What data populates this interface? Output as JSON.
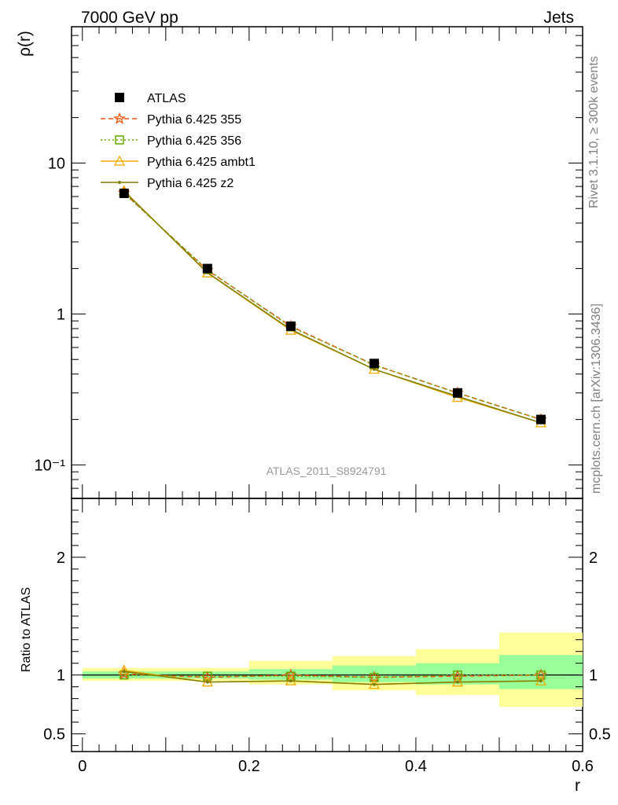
{
  "header": {
    "left": "7000 GeV pp",
    "right": "Jets"
  },
  "side_texts": {
    "rivet": "Rivet 3.1.10, ≥ 300k events",
    "mcplots": "mcplots.cern.ch [arXiv:1306.3436]"
  },
  "watermark": "ATLAS_2011_S8924791",
  "colors": {
    "atlas": "#000000",
    "p355": "#ee5511",
    "p356": "#66aa00",
    "ambt1": "#eeaa00",
    "z2": "#7f7f00",
    "band_inner": "#99ff99",
    "band_outer": "#ffff99"
  },
  "chart_data": [
    {
      "type": "line",
      "ylabel": "ρ(r)",
      "yscale": "log",
      "ylim": [
        0.06,
        80
      ],
      "xlim": [
        -0.013,
        0.6
      ],
      "yticks": [
        {
          "v": 10,
          "label": "10"
        },
        {
          "v": 1,
          "label": "1"
        },
        {
          "v": 0.1,
          "label": "10⁻¹"
        }
      ],
      "legend_position": "top-left",
      "x": [
        0.05,
        0.15,
        0.25,
        0.35,
        0.45,
        0.55
      ],
      "series": [
        {
          "name": "ATLAS",
          "values": [
            6.3,
            2.0,
            0.83,
            0.47,
            0.3,
            0.2
          ],
          "marker": "square",
          "line": "none"
        },
        {
          "name": "Pythia 6.425 355",
          "values": [
            6.35,
            1.95,
            0.83,
            0.46,
            0.3,
            0.2
          ],
          "marker": "star",
          "line": "dashed"
        },
        {
          "name": "Pythia 6.425 356",
          "values": [
            6.3,
            1.97,
            0.82,
            0.46,
            0.3,
            0.2
          ],
          "marker": "open-square",
          "line": "dotted"
        },
        {
          "name": "Pythia 6.425 ambt1",
          "values": [
            6.55,
            1.87,
            0.78,
            0.43,
            0.28,
            0.19
          ],
          "marker": "triangle",
          "line": "solid"
        },
        {
          "name": "Pythia 6.425 z2",
          "values": [
            6.5,
            1.88,
            0.79,
            0.43,
            0.285,
            0.19
          ],
          "marker": "dot",
          "line": "solid"
        }
      ]
    },
    {
      "type": "line",
      "ylabel": "Ratio to ATLAS",
      "xlabel": "r",
      "ylim": [
        0.35,
        2.5
      ],
      "xlim": [
        -0.013,
        0.6
      ],
      "xticks": [
        0,
        0.2,
        0.4,
        0.6
      ],
      "xticklabels": [
        "0",
        "0.2",
        "0.4",
        "0.6"
      ],
      "yticks": [
        2,
        1,
        0.5
      ],
      "yticklabels": [
        "2",
        "1",
        "0.5"
      ],
      "x": [
        0.05,
        0.15,
        0.25,
        0.35,
        0.45,
        0.55
      ],
      "bins": [
        [
          0,
          0.1
        ],
        [
          0.1,
          0.2
        ],
        [
          0.2,
          0.3
        ],
        [
          0.3,
          0.4
        ],
        [
          0.4,
          0.5
        ],
        [
          0.5,
          0.6
        ]
      ],
      "band_inner": [
        [
          0.97,
          1.03
        ],
        [
          0.97,
          1.03
        ],
        [
          0.96,
          1.05
        ],
        [
          0.94,
          1.08
        ],
        [
          0.92,
          1.1
        ],
        [
          0.88,
          1.17
        ]
      ],
      "band_outer": [
        [
          0.95,
          1.06
        ],
        [
          0.95,
          1.06
        ],
        [
          0.92,
          1.12
        ],
        [
          0.87,
          1.16
        ],
        [
          0.83,
          1.22
        ],
        [
          0.73,
          1.36
        ]
      ],
      "series": [
        {
          "name": "Pythia 6.425 355",
          "values": [
            1.01,
            0.98,
            1.0,
            0.98,
            0.99,
            1.0
          ]
        },
        {
          "name": "Pythia 6.425 356",
          "values": [
            1.0,
            0.99,
            0.99,
            0.98,
            1.0,
            1.0
          ]
        },
        {
          "name": "Pythia 6.425 ambt1",
          "values": [
            1.04,
            0.94,
            0.95,
            0.92,
            0.94,
            0.95
          ]
        },
        {
          "name": "Pythia 6.425 z2",
          "values": [
            1.03,
            0.94,
            0.95,
            0.92,
            0.94,
            0.95
          ]
        }
      ]
    }
  ]
}
